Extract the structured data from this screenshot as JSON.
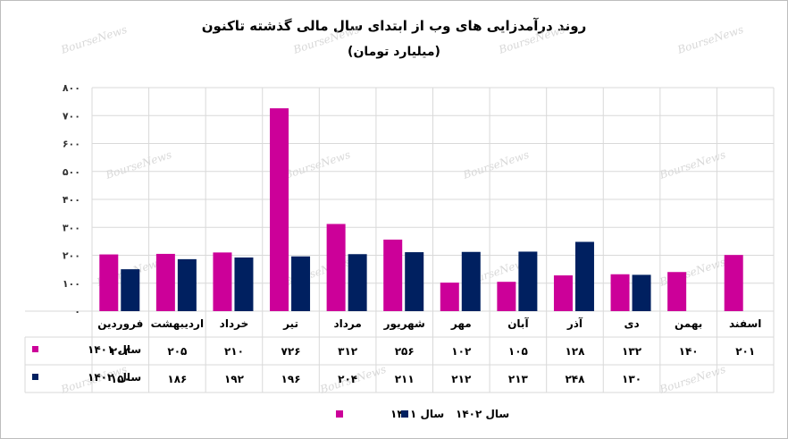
{
  "chart_data": {
    "type": "bar",
    "title": "روند درآمدزایی های وب از ابتدای سال مالی گذشته تاکنون",
    "subtitle": "(میلیارد تومان)",
    "categories": [
      "فروردین",
      "اردیبهشت",
      "خرداد",
      "تیر",
      "مرداد",
      "شهریور",
      "مهر",
      "آبان",
      "آذر",
      "دی",
      "بهمن",
      "اسفند"
    ],
    "ylim": [
      0,
      800
    ],
    "yticks": [
      0,
      100,
      200,
      300,
      400,
      500,
      600,
      700,
      800
    ],
    "ytick_labels": [
      "۰",
      "۱۰۰",
      "۲۰۰",
      "۳۰۰",
      "۴۰۰",
      "۵۰۰",
      "۶۰۰",
      "۷۰۰",
      "۸۰۰"
    ],
    "series": [
      {
        "name": "سال ۱۴۰۱",
        "color": "#cc0099",
        "values": [
          203,
          205,
          210,
          726,
          312,
          256,
          102,
          105,
          128,
          132,
          140,
          201
        ],
        "labels": [
          "۲۰۳",
          "۲۰۵",
          "۲۱۰",
          "۷۲۶",
          "۳۱۲",
          "۲۵۶",
          "۱۰۲",
          "۱۰۵",
          "۱۲۸",
          "۱۳۲",
          "۱۴۰",
          "۲۰۱"
        ]
      },
      {
        "name": "سال ۱۴۰۲",
        "color": "#002060",
        "values": [
          150,
          186,
          192,
          196,
          204,
          211,
          212,
          213,
          248,
          130,
          null,
          null
        ],
        "labels": [
          "۱۵۰",
          "۱۸۶",
          "۱۹۲",
          "۱۹۶",
          "۲۰۴",
          "۲۱۱",
          "۲۱۲",
          "۲۱۳",
          "۲۴۸",
          "۱۳۰",
          "",
          ""
        ]
      }
    ],
    "grid": true,
    "legend": "bottom",
    "data_table": true
  },
  "watermark": "BourseNews"
}
